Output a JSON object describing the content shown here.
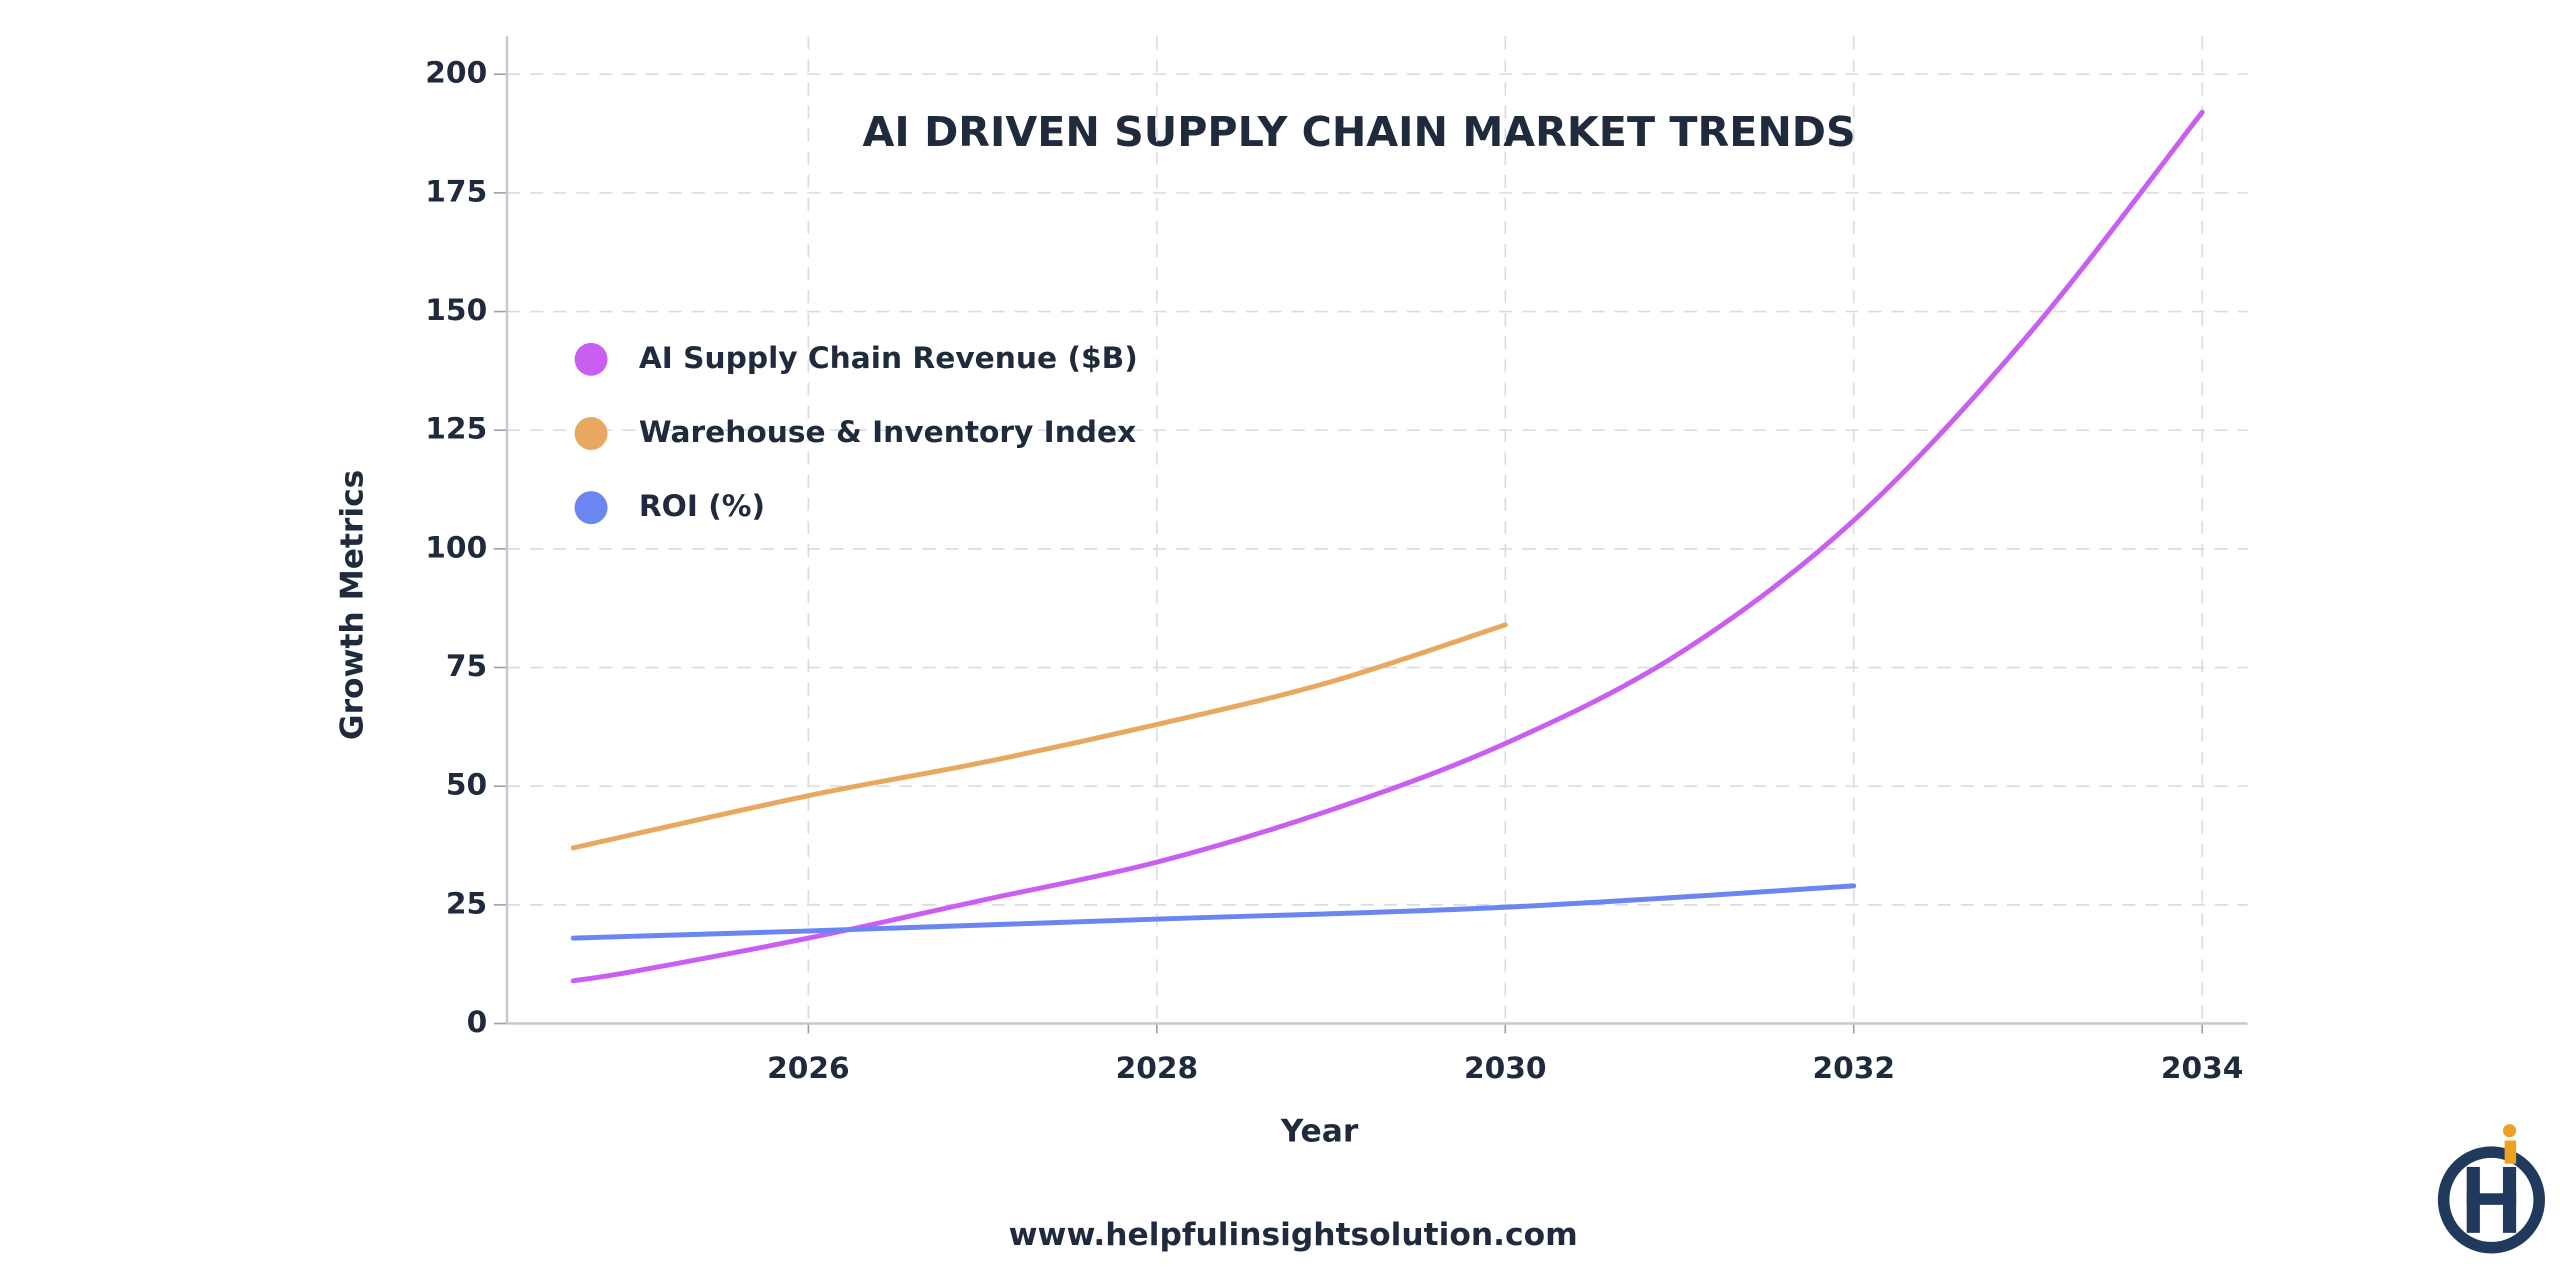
{
  "chart_data": {
    "type": "line",
    "title": "AI DRIVEN SUPPLY CHAIN MARKET TRENDS",
    "x_label": "Year",
    "y_label": "Growth Metrics",
    "xlim": [
      2024.27,
      2034.26
    ],
    "xticks": [
      2026,
      2028,
      2030,
      2032,
      2034
    ],
    "ylim": [
      0,
      208
    ],
    "yticks": [
      0,
      25,
      50,
      75,
      100,
      125,
      150,
      175,
      200
    ],
    "grid": true,
    "legend": "upper left",
    "series": [
      {
        "name": "AI Supply Chain Revenue ($B)",
        "color": "#c95ff0",
        "x": [
          2024.65,
          2025,
          2026,
          2027,
          2028,
          2029,
          2030,
          2031,
          2032,
          2033,
          2034
        ],
        "values": [
          9,
          11,
          18,
          26,
          34,
          45,
          59,
          78,
          106,
          145,
          192
        ]
      },
      {
        "name": "Warehouse & Inventory Index",
        "color": "#e8a860",
        "x": [
          2024.65,
          2026,
          2027,
          2028,
          2029,
          2030
        ],
        "values": [
          37,
          48,
          55,
          63,
          72,
          84
        ]
      },
      {
        "name": "ROI (%)",
        "color": "#6b86f0",
        "x": [
          2024.65,
          2026,
          2028,
          2030,
          2032
        ],
        "values": [
          18,
          19.5,
          22,
          24.5,
          29
        ]
      }
    ]
  },
  "footer": {
    "website": "www.helpfulinsightsolution.com"
  }
}
